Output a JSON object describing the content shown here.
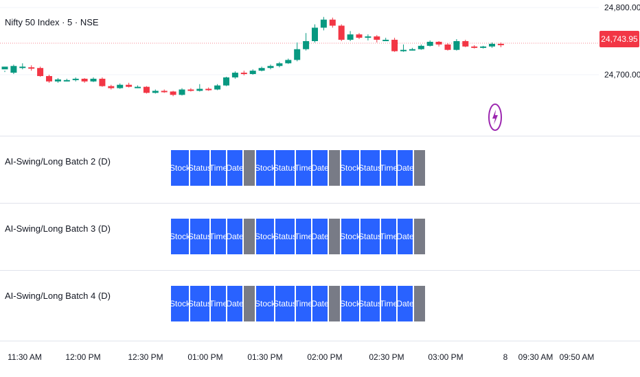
{
  "symbol": {
    "title": "Nifty 50 Index · 5 · NSE"
  },
  "price_axis": {
    "labels": [
      "24,800.00",
      "24,700.00"
    ],
    "current_price": "24,743.95"
  },
  "indicators": [
    {
      "title": "AI-Swing/Long Batch 2 (D)"
    },
    {
      "title": "AI-Swing/Long Batch 3 (D)"
    },
    {
      "title": "AI-Swing/Long Batch 4 (D)"
    }
  ],
  "table_headers": [
    "Stock",
    "Status",
    "Time",
    "Date"
  ],
  "time_axis": [
    "11:30 AM",
    "12:00 PM",
    "12:30 PM",
    "01:00 PM",
    "01:30 PM",
    "02:00 PM",
    "02:30 PM",
    "03:00 PM",
    "8",
    "09:30 AM",
    "09:50 AM"
  ],
  "colors": {
    "up": "#089981",
    "down": "#f23645",
    "table": "#2962ff",
    "table_end": "#787b86"
  },
  "icons": {
    "alert": "lightning-icon"
  },
  "candles": [
    [
      24708,
      24712,
      24706,
      24704
    ],
    [
      24703,
      24713,
      24715,
      24701
    ],
    [
      24712,
      24712,
      24717,
      24708
    ],
    [
      24711,
      24709,
      24714,
      24706
    ],
    [
      24710,
      24698,
      24712,
      24697
    ],
    [
      24698,
      24690,
      24700,
      24688
    ],
    [
      24690,
      24693,
      24695,
      24688
    ],
    [
      24692,
      24692,
      24694,
      24690
    ],
    [
      24692,
      24694,
      24696,
      24690
    ],
    [
      24694,
      24690,
      24695,
      24688
    ],
    [
      24690,
      24694,
      24696,
      24689
    ],
    [
      24694,
      24683,
      24696,
      24682
    ],
    [
      24683,
      24680,
      24685,
      24678
    ],
    [
      24680,
      24685,
      24687,
      24679
    ],
    [
      24685,
      24682,
      24688,
      24681
    ],
    [
      24682,
      24682,
      24684,
      24680
    ],
    [
      24682,
      24673,
      24683,
      24672
    ],
    [
      24673,
      24676,
      24678,
      24672
    ],
    [
      24676,
      24675,
      24678,
      24673
    ],
    [
      24675,
      24670,
      24676,
      24668
    ],
    [
      24670,
      24678,
      24680,
      24669
    ],
    [
      24678,
      24676,
      24680,
      24675
    ],
    [
      24676,
      24679,
      24686,
      24675
    ],
    [
      24679,
      24678,
      24681,
      24676
    ],
    [
      24678,
      24684,
      24686,
      24677
    ],
    [
      24684,
      24696,
      24697,
      24683
    ],
    [
      24696,
      24703,
      24705,
      24694
    ],
    [
      24703,
      24701,
      24706,
      24699
    ],
    [
      24701,
      24706,
      24708,
      24700
    ],
    [
      24706,
      24710,
      24712,
      24705
    ],
    [
      24710,
      24713,
      24715,
      24708
    ],
    [
      24713,
      24717,
      24719,
      24711
    ],
    [
      24717,
      24722,
      24724,
      24716
    ],
    [
      24722,
      24738,
      24748,
      24720
    ],
    [
      24738,
      24750,
      24762,
      24736
    ],
    [
      24750,
      24770,
      24775,
      24748
    ],
    [
      24770,
      24782,
      24786,
      24766
    ],
    [
      24782,
      24773,
      24785,
      24770
    ],
    [
      24773,
      24752,
      24775,
      24750
    ],
    [
      24752,
      24760,
      24765,
      24750
    ],
    [
      24760,
      24755,
      24762,
      24753
    ],
    [
      24755,
      24757,
      24760,
      24751
    ],
    [
      24757,
      24752,
      24759,
      24748
    ],
    [
      24752,
      24752,
      24755,
      24750
    ],
    [
      24752,
      24735,
      24755,
      24734
    ],
    [
      24735,
      24737,
      24745,
      24734
    ],
    [
      24737,
      24738,
      24740,
      24736
    ],
    [
      24738,
      24743,
      24745,
      24737
    ],
    [
      24743,
      24749,
      24751,
      24742
    ],
    [
      24749,
      24745,
      24750,
      24742
    ],
    [
      24745,
      24737,
      24747,
      24736
    ],
    [
      24737,
      24750,
      24753,
      24736
    ],
    [
      24750,
      24742,
      24752,
      24741
    ],
    [
      24742,
      24740,
      24744,
      24739
    ],
    [
      24740,
      24742,
      24743,
      24739
    ],
    [
      24742,
      24746,
      24748,
      24740
    ],
    [
      24746,
      24744,
      24748,
      24741
    ]
  ]
}
